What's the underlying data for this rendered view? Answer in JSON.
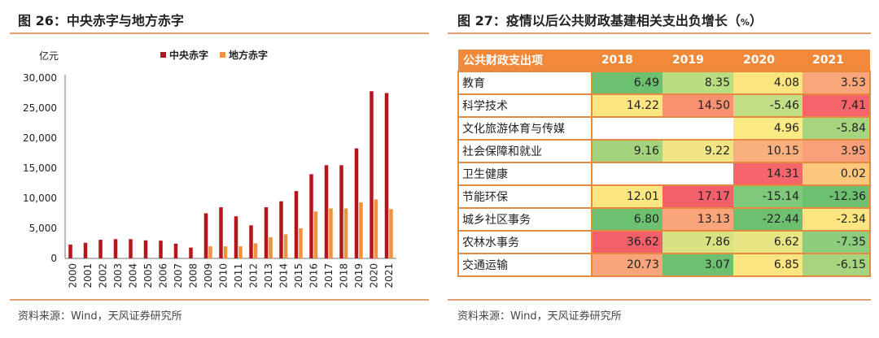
{
  "left": {
    "title": "图 26：中央赤字与地方赤字",
    "source": "资料来源：Wind，天风证券研究所"
  },
  "right": {
    "title_main": "图 27：疫情以后公共财政基建相关支出负增长（",
    "title_unit": "%",
    "title_close": "）",
    "source": "资料来源：Wind，天风证券研究所"
  },
  "colors": {
    "central": "#b5161b",
    "local": "#f0913b",
    "accent": "#e2a070",
    "header": "#f08a3a"
  },
  "chart_data": [
    {
      "type": "bar",
      "title": "中央赤字与地方赤字",
      "ylabel": "亿元",
      "xlabel": "",
      "ylim": [
        0,
        30000
      ],
      "yticks": [
        "0",
        "5,000",
        "10,000",
        "15,000",
        "20,000",
        "25,000",
        "30,000"
      ],
      "ytick_values": [
        0,
        5000,
        10000,
        15000,
        20000,
        25000,
        30000
      ],
      "legend_position": "top",
      "categories": [
        "2000",
        "2001",
        "2002",
        "2003",
        "2004",
        "2005",
        "2006",
        "2007",
        "2008",
        "2009",
        "2010",
        "2011",
        "2012",
        "2013",
        "2014",
        "2015",
        "2016",
        "2017",
        "2018",
        "2019",
        "2020",
        "2021"
      ],
      "series": [
        {
          "name": "中央赤字",
          "values": [
            2300,
            2600,
            3100,
            3200,
            3200,
            3000,
            2950,
            2450,
            1800,
            7500,
            8500,
            7000,
            5500,
            8500,
            9500,
            11200,
            14000,
            15500,
            15500,
            18300,
            27800,
            27500
          ]
        },
        {
          "name": "地方赤字",
          "values": [
            0,
            0,
            0,
            0,
            0,
            0,
            0,
            0,
            0,
            2000,
            2000,
            2000,
            2500,
            3500,
            4000,
            5000,
            7800,
            8300,
            8300,
            9300,
            9800,
            8200
          ]
        }
      ]
    },
    {
      "type": "table",
      "title": "疫情以后公共财政基建相关支出负增长（%）",
      "columns": [
        "公共财政支出项",
        "2018",
        "2019",
        "2020",
        "2021"
      ],
      "rows": [
        {
          "label": "教育",
          "values": [
            "6.49",
            "8.35",
            "4.08",
            "3.53"
          ],
          "colors": [
            "#6cc070",
            "#b9dd80",
            "#fae57f",
            "#f9a77a"
          ]
        },
        {
          "label": "科学技术",
          "values": [
            "14.22",
            "14.50",
            "-5.46",
            "7.41"
          ],
          "colors": [
            "#fde582",
            "#f8916f",
            "#c2df85",
            "#f5646a"
          ]
        },
        {
          "label": "文化旅游体育与传媒",
          "values": [
            "",
            "",
            "4.96",
            "-5.84"
          ],
          "colors": [
            "#ffffff",
            "#ffffff",
            "#fcea84",
            "#a6d47f"
          ]
        },
        {
          "label": "社会保障和就业",
          "values": [
            "9.16",
            "9.22",
            "10.15",
            "3.95"
          ],
          "colors": [
            "#a4d37e",
            "#f0e585",
            "#f9b07c",
            "#f9a07a"
          ]
        },
        {
          "label": "卫生健康",
          "values": [
            "",
            "",
            "14.31",
            "0.02"
          ],
          "colors": [
            "#ffffff",
            "#ffffff",
            "#f5656b",
            "#fbc87d"
          ]
        },
        {
          "label": "节能环保",
          "values": [
            "12.01",
            "17.17",
            "-15.14",
            "-12.36"
          ],
          "colors": [
            "#fee782",
            "#f4606a",
            "#7fc97b",
            "#6cc070"
          ]
        },
        {
          "label": "城乡社区事务",
          "values": [
            "6.80",
            "13.13",
            "-22.44",
            "-2.34"
          ],
          "colors": [
            "#6cc070",
            "#f9a47a",
            "#6cc070",
            "#fde582"
          ]
        },
        {
          "label": "农林水事务",
          "values": [
            "36.62",
            "7.86",
            "6.62",
            "-7.35"
          ],
          "colors": [
            "#f4606a",
            "#d9e283",
            "#e8e584",
            "#8ccc7c"
          ]
        },
        {
          "label": "交通运输",
          "values": [
            "20.73",
            "3.07",
            "6.85",
            "-6.15"
          ],
          "colors": [
            "#f9a47a",
            "#6cc070",
            "#fde582",
            "#a6d47f"
          ]
        }
      ]
    }
  ]
}
